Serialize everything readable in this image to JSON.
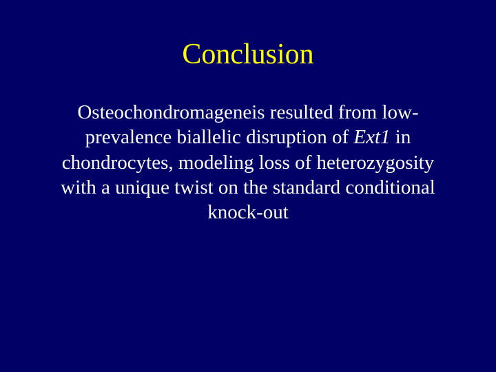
{
  "slide": {
    "title": "Conclusion",
    "body_pre": "Osteochondromageneis resulted from low-prevalence biallelic disruption of ",
    "body_italic": "Ext1",
    "body_post": " in chondrocytes, modeling loss of heterozygosity with a unique twist on the standard conditional knock-out"
  },
  "colors": {
    "background": "#000066",
    "title": "#ffff00",
    "body": "#ffffff"
  },
  "typography": {
    "title_fontsize": 42,
    "body_fontsize": 29,
    "font_family": "Times New Roman"
  }
}
